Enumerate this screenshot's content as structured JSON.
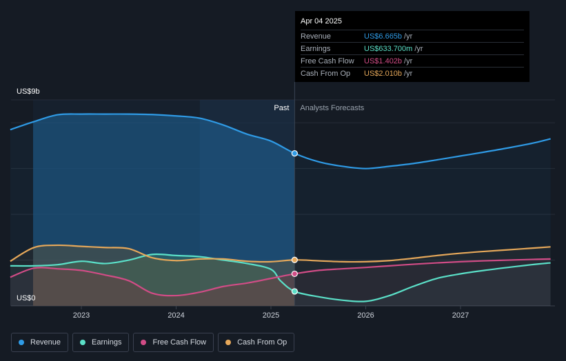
{
  "chart_data": {
    "type": "area",
    "title": "",
    "y_label_top": "US$9b",
    "y_label_bottom": "US$0",
    "ylim": [
      0,
      9
    ],
    "xlim": [
      2022.25,
      2027.95
    ],
    "x_ticks": [
      {
        "value": 2023,
        "label": "2023"
      },
      {
        "value": 2024,
        "label": "2024"
      },
      {
        "value": 2025,
        "label": "2025"
      },
      {
        "value": 2026,
        "label": "2026"
      },
      {
        "value": 2027,
        "label": "2027"
      }
    ],
    "divider_x": 2025.25,
    "past_label": "Past",
    "forecast_label": "Analysts Forecasts",
    "series": [
      {
        "name": "Revenue",
        "color": "#2f9be6",
        "x": [
          2022.25,
          2022.5,
          2022.75,
          2023.0,
          2023.25,
          2023.5,
          2023.75,
          2024.0,
          2024.25,
          2024.5,
          2024.75,
          2025.0,
          2025.25,
          2025.5,
          2025.75,
          2026.0,
          2026.25,
          2026.5,
          2026.75,
          2027.0,
          2027.25,
          2027.5,
          2027.75,
          2027.95
        ],
        "values": [
          7.7,
          8.05,
          8.35,
          8.38,
          8.38,
          8.38,
          8.36,
          8.3,
          8.2,
          7.9,
          7.5,
          7.2,
          6.665,
          6.3,
          6.1,
          6.0,
          6.1,
          6.22,
          6.38,
          6.55,
          6.72,
          6.9,
          7.1,
          7.3
        ]
      },
      {
        "name": "Earnings",
        "color": "#5be0c8",
        "x": [
          2022.25,
          2022.5,
          2022.75,
          2023.0,
          2023.25,
          2023.5,
          2023.75,
          2024.0,
          2024.25,
          2024.5,
          2024.75,
          2025.0,
          2025.1,
          2025.25,
          2025.5,
          2025.75,
          2026.0,
          2026.25,
          2026.5,
          2026.75,
          2027.0,
          2027.25,
          2027.5,
          2027.75,
          2027.95
        ],
        "values": [
          1.75,
          1.75,
          1.8,
          1.95,
          1.85,
          2.0,
          2.25,
          2.2,
          2.15,
          2.0,
          1.85,
          1.6,
          1.1,
          0.634,
          0.4,
          0.25,
          0.2,
          0.45,
          0.85,
          1.2,
          1.4,
          1.55,
          1.68,
          1.8,
          1.88
        ]
      },
      {
        "name": "Free Cash Flow",
        "color": "#d14c86",
        "x": [
          2022.25,
          2022.5,
          2022.75,
          2023.0,
          2023.25,
          2023.5,
          2023.75,
          2024.0,
          2024.25,
          2024.5,
          2024.75,
          2025.0,
          2025.25,
          2025.5,
          2025.75,
          2026.0,
          2026.25,
          2026.5,
          2026.75,
          2027.0,
          2027.25,
          2027.5,
          2027.75,
          2027.95
        ],
        "values": [
          1.25,
          1.65,
          1.62,
          1.55,
          1.35,
          1.1,
          0.55,
          0.45,
          0.6,
          0.85,
          1.0,
          1.2,
          1.402,
          1.55,
          1.62,
          1.68,
          1.75,
          1.82,
          1.88,
          1.93,
          1.97,
          2.0,
          2.03,
          2.05
        ]
      },
      {
        "name": "Cash From Op",
        "color": "#e6a85a",
        "x": [
          2022.25,
          2022.5,
          2022.75,
          2023.0,
          2023.25,
          2023.5,
          2023.75,
          2024.0,
          2024.25,
          2024.5,
          2024.75,
          2025.0,
          2025.25,
          2025.5,
          2025.75,
          2026.0,
          2026.25,
          2026.5,
          2026.75,
          2027.0,
          2027.25,
          2027.5,
          2027.75,
          2027.95
        ],
        "values": [
          1.95,
          2.55,
          2.65,
          2.6,
          2.55,
          2.5,
          2.1,
          1.98,
          2.05,
          2.05,
          1.95,
          1.93,
          2.01,
          1.97,
          1.93,
          1.93,
          1.98,
          2.08,
          2.2,
          2.3,
          2.38,
          2.45,
          2.52,
          2.58
        ]
      }
    ]
  },
  "tooltip": {
    "date": "Apr 04 2025",
    "rows": [
      {
        "label": "Revenue",
        "value": "US$6.665b",
        "unit": "/yr",
        "color": "#2f9be6"
      },
      {
        "label": "Earnings",
        "value": "US$633.700m",
        "unit": "/yr",
        "color": "#5be0c8"
      },
      {
        "label": "Free Cash Flow",
        "value": "US$1.402b",
        "unit": "/yr",
        "color": "#d14c86"
      },
      {
        "label": "Cash From Op",
        "value": "US$2.010b",
        "unit": "/yr",
        "color": "#e6a85a"
      }
    ]
  },
  "legend": [
    {
      "label": "Revenue",
      "color": "#2f9be6"
    },
    {
      "label": "Earnings",
      "color": "#5be0c8"
    },
    {
      "label": "Free Cash Flow",
      "color": "#d14c86"
    },
    {
      "label": "Cash From Op",
      "color": "#e6a85a"
    }
  ]
}
